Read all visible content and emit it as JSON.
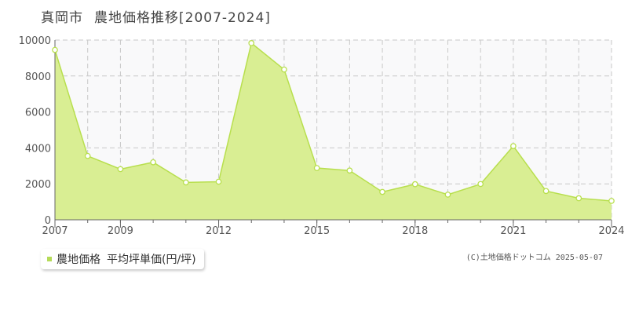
{
  "header": {
    "city": "真岡市",
    "title": "農地価格推移[2007-2024]"
  },
  "legend": {
    "series_label": "農地価格",
    "unit_label": "平均坪単価(円/坪)"
  },
  "credit": "(C)土地価格ドットコム 2025-05-07",
  "colors": {
    "fill": "#d9ee93",
    "line": "#b8df4e",
    "marker_fill": "#ffffff",
    "grid": "#c8c8c8",
    "axis": "#666666",
    "plot_bg": "#f9f9fa"
  },
  "chart_data": {
    "type": "area",
    "x": [
      2007,
      2008,
      2009,
      2010,
      2011,
      2012,
      2013,
      2014,
      2015,
      2016,
      2017,
      2018,
      2019,
      2020,
      2021,
      2022,
      2023,
      2024
    ],
    "series": [
      {
        "name": "農地価格 平均坪単価(円/坪)",
        "values": [
          9450,
          3550,
          2820,
          3200,
          2080,
          2120,
          9830,
          8360,
          2880,
          2740,
          1550,
          1980,
          1400,
          1990,
          4100,
          1600,
          1200,
          1050
        ]
      }
    ],
    "xlim": [
      2007,
      2024
    ],
    "ylim": [
      0,
      10000
    ],
    "y_ticks": [
      0,
      2000,
      4000,
      6000,
      8000,
      10000
    ],
    "x_tick_labels": [
      2007,
      2009,
      2012,
      2015,
      2018,
      2021,
      2024
    ],
    "grid": true
  }
}
